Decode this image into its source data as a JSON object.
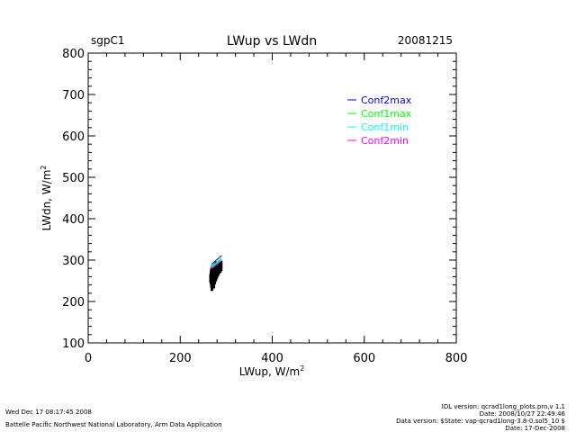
{
  "header": {
    "site": "sgpC1",
    "title": "LWup vs LWdn",
    "date": "20081215"
  },
  "chart_data": {
    "type": "scatter",
    "title": "LWup vs LWdn",
    "xlabel_main": "LWup, W/m",
    "xlabel_sup": "2",
    "ylabel_main": "LWdn, W/m",
    "ylabel_sup": "2",
    "xlim": [
      0,
      800
    ],
    "ylim": [
      100,
      800
    ],
    "xticks": [
      0,
      200,
      400,
      600,
      800
    ],
    "yticks": [
      100,
      200,
      300,
      400,
      500,
      600,
      700,
      800
    ],
    "grid": false,
    "legend_position": "top-right",
    "lines": [
      {
        "name": "Conf2max",
        "color": "#0000ff",
        "x": [
          268,
          290
        ],
        "y": [
          290,
          311
        ]
      },
      {
        "name": "Conf1max",
        "color": "#00ff00",
        "x": [
          268,
          290
        ],
        "y": [
          284,
          305
        ]
      },
      {
        "name": "Conf1min",
        "color": "#00ffff",
        "x": [
          268,
          290
        ],
        "y": [
          282,
          302
        ]
      },
      {
        "name": "Conf2min",
        "color": "#ff00ff",
        "x": [
          268,
          290
        ],
        "y": [
          279,
          299
        ]
      }
    ],
    "scatter": {
      "name": "data",
      "color": "#000000",
      "points": [
        [
          266,
          252
        ],
        [
          266,
          260
        ],
        [
          267,
          248
        ],
        [
          267,
          268
        ],
        [
          268,
          240
        ],
        [
          268,
          256
        ],
        [
          268,
          275
        ],
        [
          269,
          232
        ],
        [
          269,
          262
        ],
        [
          270,
          250
        ],
        [
          270,
          270
        ],
        [
          270,
          281
        ],
        [
          271,
          245
        ],
        [
          271,
          258
        ],
        [
          272,
          265
        ],
        [
          272,
          276
        ],
        [
          273,
          238
        ],
        [
          273,
          252
        ],
        [
          274,
          270
        ],
        [
          274,
          284
        ],
        [
          275,
          248
        ],
        [
          275,
          262
        ],
        [
          276,
          274
        ],
        [
          276,
          286
        ],
        [
          277,
          255
        ],
        [
          277,
          268
        ],
        [
          278,
          280
        ],
        [
          278,
          290
        ],
        [
          279,
          260
        ],
        [
          279,
          272
        ],
        [
          280,
          284
        ],
        [
          281,
          266
        ],
        [
          281,
          278
        ],
        [
          282,
          288
        ],
        [
          283,
          270
        ],
        [
          283,
          282
        ],
        [
          284,
          292
        ],
        [
          285,
          274
        ],
        [
          285,
          286
        ],
        [
          286,
          280
        ],
        [
          287,
          276
        ],
        [
          287,
          290
        ],
        [
          288,
          284
        ],
        [
          289,
          280
        ],
        [
          289,
          292
        ]
      ]
    }
  },
  "footer": {
    "timestamp": "Wed Dec 17 08:17:45 2008",
    "org": "Battelle Pacific Northwest National Laboratory, Arm Data Application",
    "idl_version": "IDL version: qcrad1long_plots.pro,v 1.1",
    "file_date": "Date: 2008/10/27 22:49:46",
    "data_version": "Data version: $State: vap-qcrad1long-3.8-0.sol5_10 $",
    "data_date": "Date: 17-Dec-2008"
  }
}
